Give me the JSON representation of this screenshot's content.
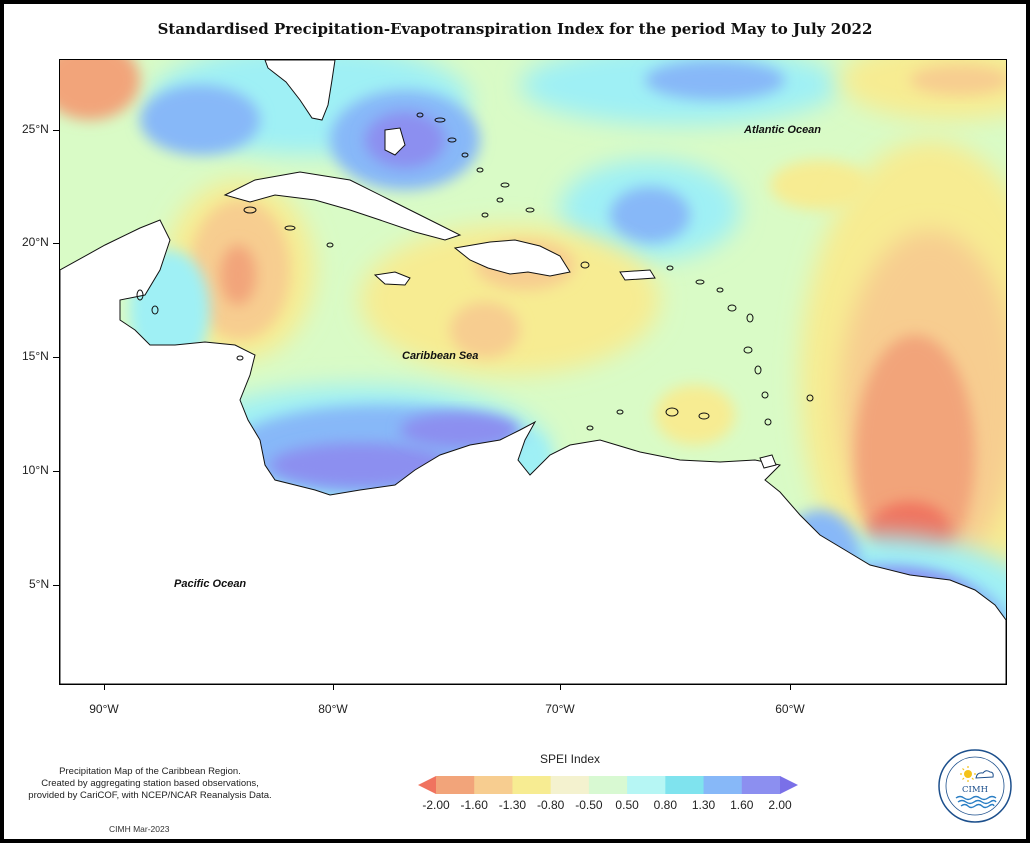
{
  "title": "Standardised Precipitation-Evapotranspiration Index for the period May to July 2022",
  "ocean_labels": {
    "atlantic": "Atlantic Ocean",
    "caribbean": "Caribbean Sea",
    "pacific": "Pacific Ocean"
  },
  "latitude_labels": [
    "25°N",
    "20°N",
    "15°N",
    "10°N",
    "5°N"
  ],
  "longitude_labels": [
    "90°W",
    "80°W",
    "70°W",
    "60°W"
  ],
  "legend": {
    "title": "SPEI Index",
    "ticks": [
      "-2.00",
      "-1.60",
      "-1.30",
      "-0.80",
      "-0.50",
      "0.50",
      "0.80",
      "1.30",
      "1.60",
      "2.00"
    ],
    "colors": [
      "#f0735f",
      "#f2a47a",
      "#f7cd90",
      "#f7ec92",
      "#f4f2cf",
      "#d8f9d2",
      "#b6f6f4",
      "#7fe3ee",
      "#87b8f8",
      "#8c8ff0",
      "#7a70e8"
    ]
  },
  "footnote": {
    "line1": "Precipitation Map of the Caribbean Region.",
    "line2": "Created by aggregating station based observations,",
    "line3": "provided by CariCOF, with NCEP/NCAR Reanalysis Data."
  },
  "credit": "CIMH Mar-2023",
  "logo": {
    "text": "CIMH",
    "icon": "cimh-sun-cloud-waves-logo"
  },
  "map_colors": {
    "background": "#d9fbc6",
    "dry_yellow": "#f7ec92",
    "dry_orange": "#f7cd90",
    "dry_salmon": "#f2a47a",
    "dry_red": "#f0735f",
    "wet_cyan": "#9ff0f5",
    "wet_blue": "#87b8f8",
    "wet_purple": "#8c8ff0",
    "land": "#ffffff"
  }
}
